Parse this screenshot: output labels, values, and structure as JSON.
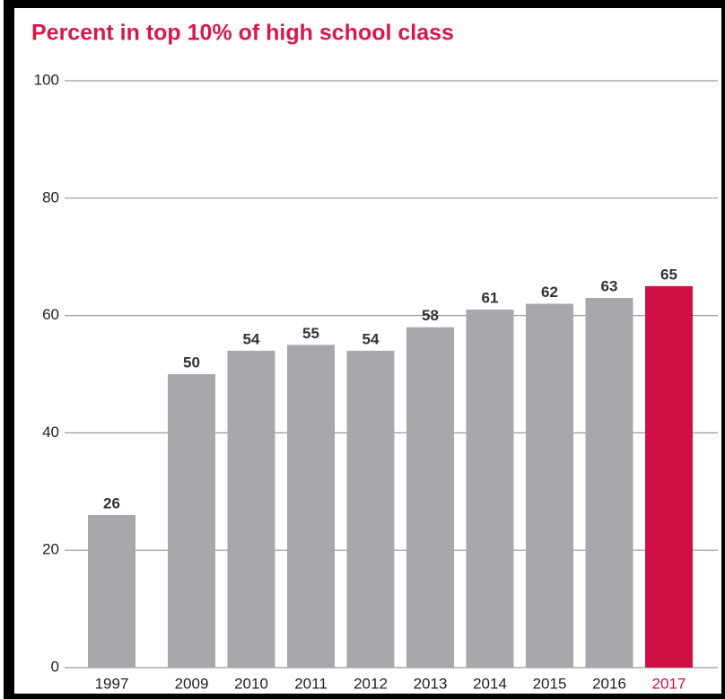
{
  "chart_data": {
    "type": "bar",
    "title": "Percent in top 10% of high school class",
    "categories": [
      "1997",
      "2009",
      "2010",
      "2011",
      "2012",
      "2013",
      "2014",
      "2015",
      "2016",
      "2017"
    ],
    "values": [
      26,
      50,
      54,
      55,
      54,
      58,
      61,
      62,
      63,
      65
    ],
    "colors": [
      "#a7a8ab",
      "#a7a8ab",
      "#a7a8ab",
      "#a7a8ab",
      "#a7a8ab",
      "#a7a8ab",
      "#a7a8ab",
      "#a7a8ab",
      "#a7a8ab",
      "#d20f45"
    ],
    "ylim": [
      0,
      100
    ],
    "yticks": [
      0,
      20,
      40,
      60,
      80,
      100
    ],
    "grid": true
  }
}
